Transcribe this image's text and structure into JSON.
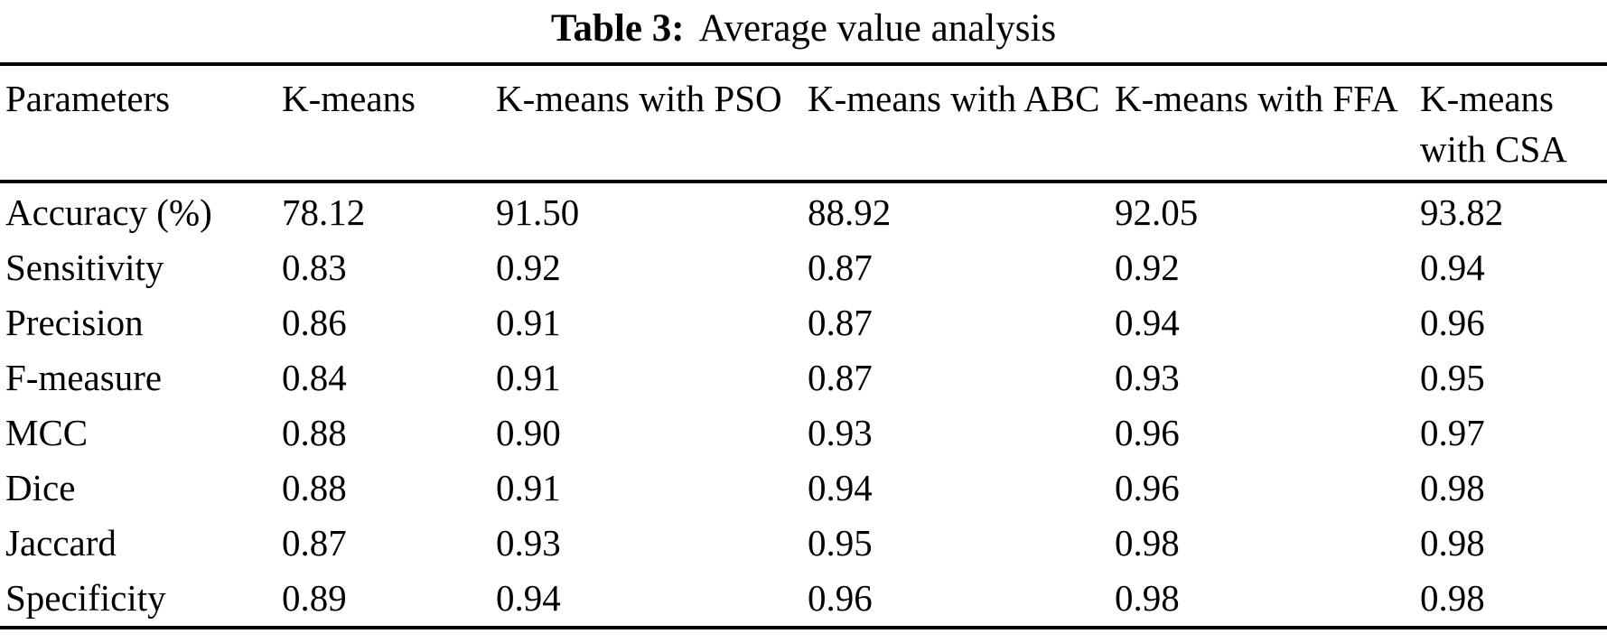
{
  "page": {
    "background_color": "#ffffff",
    "text_color": "#000000",
    "rule_color": "#000000"
  },
  "caption": {
    "label": "Table 3:",
    "text": "Average value analysis"
  },
  "table": {
    "columns": [
      "Parameters",
      "K-means",
      "K-means with PSO",
      "K-means with ABC",
      "K-means with FFA",
      "K-means with CSA"
    ],
    "rows": [
      {
        "label": "Accuracy (%)",
        "values": [
          "78.12",
          "91.50",
          "88.92",
          "92.05",
          "93.82"
        ]
      },
      {
        "label": "Sensitivity",
        "values": [
          "0.83",
          "0.92",
          "0.87",
          "0.92",
          "0.94"
        ]
      },
      {
        "label": "Precision",
        "values": [
          "0.86",
          "0.91",
          "0.87",
          "0.94",
          "0.96"
        ]
      },
      {
        "label": "F-measure",
        "values": [
          "0.84",
          "0.91",
          "0.87",
          "0.93",
          "0.95"
        ]
      },
      {
        "label": "MCC",
        "values": [
          "0.88",
          "0.90",
          "0.93",
          "0.96",
          "0.97"
        ]
      },
      {
        "label": "Dice",
        "values": [
          "0.88",
          "0.91",
          "0.94",
          "0.96",
          "0.98"
        ]
      },
      {
        "label": "Jaccard",
        "values": [
          "0.87",
          "0.93",
          "0.95",
          "0.98",
          "0.98"
        ]
      },
      {
        "label": "Specificity",
        "values": [
          "0.89",
          "0.94",
          "0.96",
          "0.98",
          "0.98"
        ]
      }
    ]
  }
}
